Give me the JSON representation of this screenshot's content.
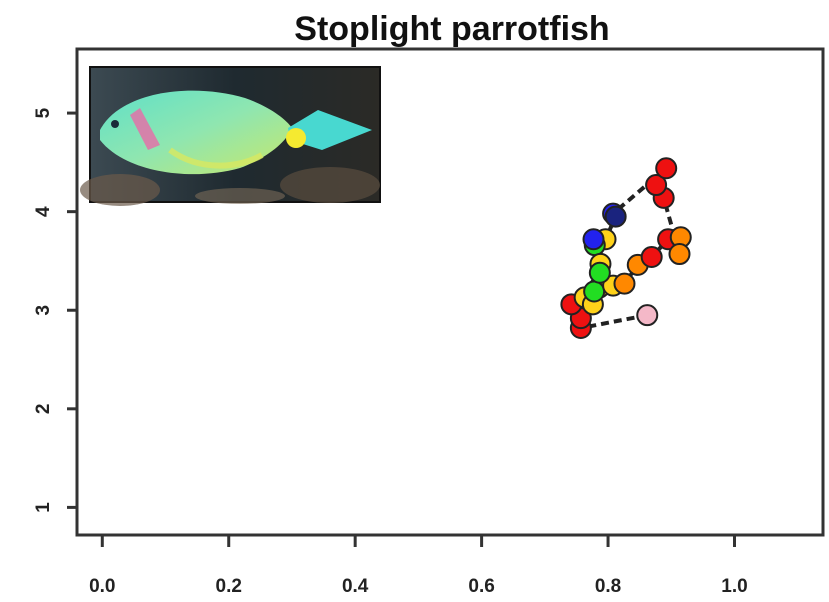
{
  "chart_data": {
    "type": "scatter",
    "title": "Stoplight parrotfish",
    "xlabel": "",
    "ylabel": "",
    "xlim": [
      -0.04,
      1.14
    ],
    "ylim": [
      0.72,
      5.65
    ],
    "xticks": [
      0.0,
      0.2,
      0.4,
      0.6,
      0.8,
      1.0
    ],
    "xtick_labels": [
      "0.0",
      "0.2",
      "0.4",
      "0.6",
      "0.8",
      "1.0"
    ],
    "yticks": [
      1,
      2,
      3,
      4,
      5
    ],
    "ytick_labels": [
      "1",
      "2",
      "3",
      "4",
      "5"
    ],
    "grid": false,
    "connected": true,
    "inset_image": "parrotfish-photo",
    "points": [
      {
        "x": 0.862,
        "y": 2.95,
        "color": "#f4b8c8"
      },
      {
        "x": 0.757,
        "y": 2.82,
        "color": "#ee1111"
      },
      {
        "x": 0.757,
        "y": 2.92,
        "color": "#ee1111"
      },
      {
        "x": 0.742,
        "y": 3.06,
        "color": "#ee1111"
      },
      {
        "x": 0.763,
        "y": 3.13,
        "color": "#ffd21a"
      },
      {
        "x": 0.776,
        "y": 3.06,
        "color": "#ffd21a"
      },
      {
        "x": 0.786,
        "y": 3.23,
        "color": "#ffd21a"
      },
      {
        "x": 0.778,
        "y": 3.19,
        "color": "#22dd22"
      },
      {
        "x": 0.808,
        "y": 3.25,
        "color": "#ffd21a"
      },
      {
        "x": 0.826,
        "y": 3.27,
        "color": "#ff8800"
      },
      {
        "x": 0.847,
        "y": 3.46,
        "color": "#ff8800"
      },
      {
        "x": 0.869,
        "y": 3.54,
        "color": "#ee1111"
      },
      {
        "x": 0.895,
        "y": 3.72,
        "color": "#ee1111"
      },
      {
        "x": 0.915,
        "y": 3.74,
        "color": "#ff8800"
      },
      {
        "x": 0.913,
        "y": 3.57,
        "color": "#ff8800"
      },
      {
        "x": 0.888,
        "y": 4.14,
        "color": "#ee1111"
      },
      {
        "x": 0.876,
        "y": 4.27,
        "color": "#ee1111"
      },
      {
        "x": 0.892,
        "y": 4.44,
        "color": "#ee1111"
      },
      {
        "x": 0.808,
        "y": 3.98,
        "color": "#2222ee"
      },
      {
        "x": 0.812,
        "y": 3.95,
        "color": "#1a237e"
      },
      {
        "x": 0.796,
        "y": 3.72,
        "color": "#ffd21a"
      },
      {
        "x": 0.779,
        "y": 3.66,
        "color": "#22dd22"
      },
      {
        "x": 0.777,
        "y": 3.72,
        "color": "#2222ee"
      },
      {
        "x": 0.788,
        "y": 3.47,
        "color": "#ffd21a"
      },
      {
        "x": 0.787,
        "y": 3.38,
        "color": "#22dd22"
      }
    ]
  }
}
